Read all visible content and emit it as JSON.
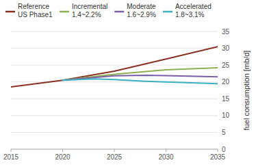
{
  "chart_data": {
    "type": "line",
    "ylabel": "fuel consumption [mb/d]",
    "xlim": [
      2015,
      2035
    ],
    "ylim": [
      0,
      35
    ],
    "xticks": [
      2015,
      2020,
      2025,
      2030,
      2035
    ],
    "yticks": [
      0,
      5,
      10,
      15,
      20,
      25,
      30,
      35
    ],
    "grid": true,
    "legend": "top",
    "series": [
      {
        "name": "Reference\nUS Phase1",
        "color": "#8B3020",
        "x": [
          2015,
          2020,
          2025,
          2030,
          2035
        ],
        "values": [
          18.5,
          20.5,
          23.2,
          26.8,
          30.5
        ]
      },
      {
        "name": "Incremental\n1.4~2.2%",
        "color": "#8cb050",
        "x": [
          2020,
          2025,
          2030,
          2035
        ],
        "values": [
          20.5,
          22.3,
          23.6,
          24.2
        ]
      },
      {
        "name": "Moderate\n1.6~2.9%",
        "color": "#7b5ea7",
        "x": [
          2020,
          2025,
          2028,
          2030,
          2035
        ],
        "values": [
          20.5,
          21.8,
          22.0,
          21.9,
          21.5
        ]
      },
      {
        "name": "Accelerated\n1.8~3.1%",
        "color": "#3ab0c0",
        "x": [
          2020,
          2023,
          2025,
          2028,
          2030,
          2035
        ],
        "values": [
          20.5,
          20.9,
          20.7,
          20.2,
          20.0,
          19.5
        ]
      }
    ]
  }
}
